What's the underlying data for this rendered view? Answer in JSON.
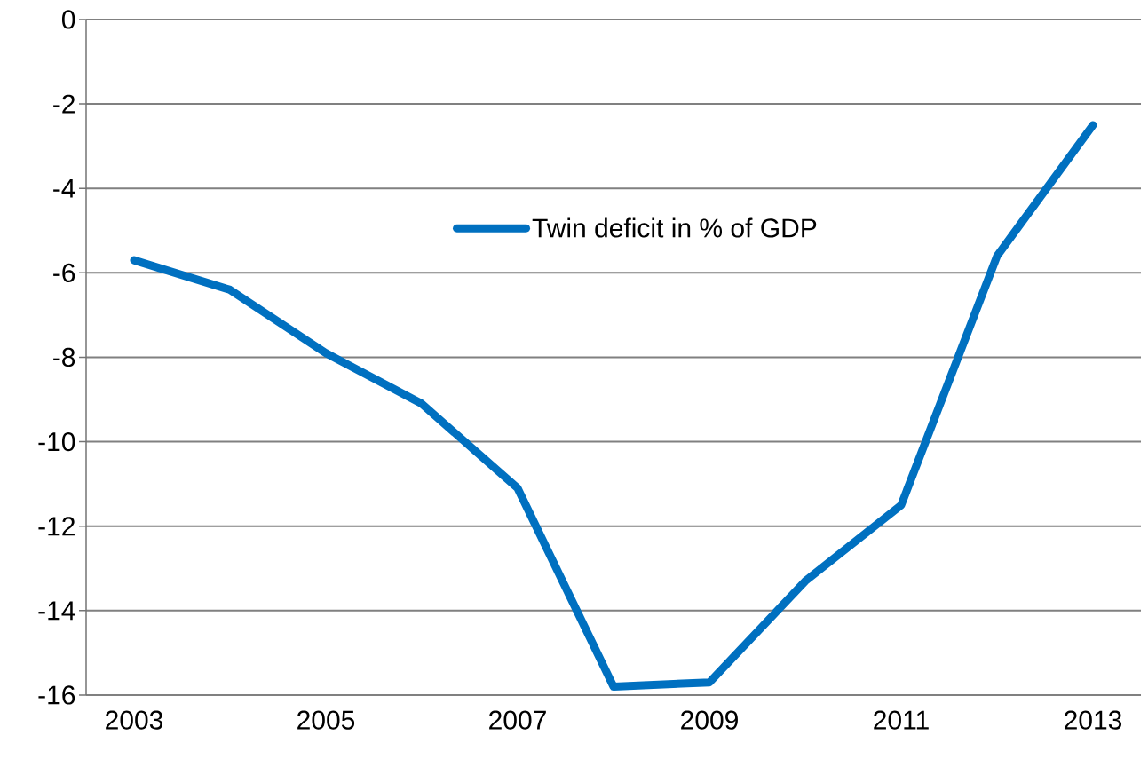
{
  "chart_data": {
    "type": "line",
    "categories": [
      "2003",
      null,
      "2005",
      null,
      "2007",
      null,
      "2009",
      null,
      "2011",
      null,
      "2013"
    ],
    "series": [
      {
        "name": "Twin deficit in % of GDP",
        "color": "#0070c0",
        "values": [
          -5.7,
          -6.4,
          -7.9,
          -9.1,
          -11.1,
          -15.8,
          -15.7,
          -13.3,
          -11.5,
          -5.6,
          -2.5
        ]
      }
    ],
    "ylim": [
      -16,
      0
    ],
    "yticks": [
      -16,
      -14,
      -12,
      -10,
      -8,
      -6,
      -4,
      -2,
      0
    ],
    "grid": "y",
    "legend": "top",
    "marker": "none",
    "line_style": "solid"
  }
}
